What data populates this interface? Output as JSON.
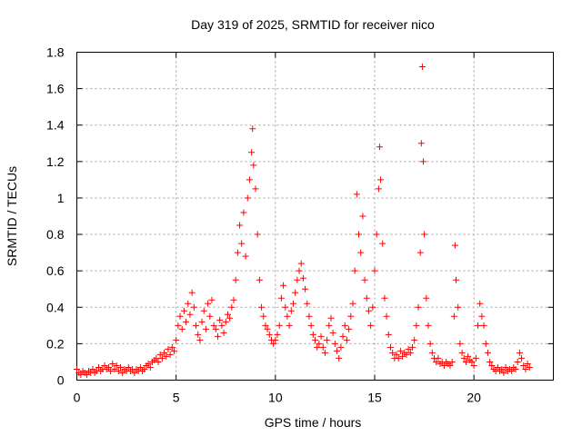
{
  "chart_data": {
    "type": "scatter",
    "title": "Day 319 of 2025, SRMTID for receiver nico",
    "xlabel": "GPS time / hours",
    "ylabel": "SRMTID / TECUs",
    "xlim": [
      0,
      24
    ],
    "ylim": [
      0,
      1.8
    ],
    "grid": true,
    "x_ticks": [
      0,
      5,
      10,
      15,
      20
    ],
    "x_tick_labels": [
      "0",
      "5",
      "10",
      "15",
      "20"
    ],
    "y_ticks": [
      0,
      0.2,
      0.4,
      0.6,
      0.8,
      1,
      1.2,
      1.4,
      1.6,
      1.8
    ],
    "y_tick_labels": [
      "0",
      "0.2",
      "0.4",
      "0.6",
      "0.8",
      "1",
      "1.2",
      "1.4",
      "1.6",
      "1.8"
    ],
    "marker": "+",
    "color": "#ff0000",
    "series": [
      {
        "name": "SRMTID",
        "points": [
          [
            0.0,
            0.06
          ],
          [
            0.1,
            0.04
          ],
          [
            0.2,
            0.03
          ],
          [
            0.3,
            0.05
          ],
          [
            0.4,
            0.04
          ],
          [
            0.5,
            0.03
          ],
          [
            0.6,
            0.05
          ],
          [
            0.7,
            0.04
          ],
          [
            0.8,
            0.06
          ],
          [
            0.9,
            0.04
          ],
          [
            1.0,
            0.05
          ],
          [
            1.1,
            0.07
          ],
          [
            1.2,
            0.05
          ],
          [
            1.3,
            0.06
          ],
          [
            1.4,
            0.08
          ],
          [
            1.5,
            0.06
          ],
          [
            1.6,
            0.07
          ],
          [
            1.7,
            0.05
          ],
          [
            1.8,
            0.09
          ],
          [
            1.9,
            0.06
          ],
          [
            2.0,
            0.08
          ],
          [
            2.1,
            0.05
          ],
          [
            2.2,
            0.07
          ],
          [
            2.3,
            0.04
          ],
          [
            2.4,
            0.06
          ],
          [
            2.5,
            0.05
          ],
          [
            2.6,
            0.07
          ],
          [
            2.7,
            0.05
          ],
          [
            2.8,
            0.06
          ],
          [
            2.9,
            0.04
          ],
          [
            3.0,
            0.06
          ],
          [
            3.1,
            0.05
          ],
          [
            3.2,
            0.07
          ],
          [
            3.3,
            0.05
          ],
          [
            3.4,
            0.06
          ],
          [
            3.5,
            0.08
          ],
          [
            3.6,
            0.09
          ],
          [
            3.7,
            0.07
          ],
          [
            3.8,
            0.1
          ],
          [
            3.9,
            0.11
          ],
          [
            4.0,
            0.12
          ],
          [
            4.1,
            0.1
          ],
          [
            4.2,
            0.14
          ],
          [
            4.3,
            0.12
          ],
          [
            4.4,
            0.15
          ],
          [
            4.5,
            0.13
          ],
          [
            4.6,
            0.17
          ],
          [
            4.7,
            0.14
          ],
          [
            4.8,
            0.18
          ],
          [
            4.9,
            0.16
          ],
          [
            5.0,
            0.22
          ],
          [
            5.1,
            0.3
          ],
          [
            5.2,
            0.35
          ],
          [
            5.3,
            0.28
          ],
          [
            5.4,
            0.38
          ],
          [
            5.5,
            0.32
          ],
          [
            5.6,
            0.42
          ],
          [
            5.7,
            0.36
          ],
          [
            5.8,
            0.48
          ],
          [
            5.9,
            0.4
          ],
          [
            6.0,
            0.3
          ],
          [
            6.1,
            0.25
          ],
          [
            6.2,
            0.22
          ],
          [
            6.3,
            0.32
          ],
          [
            6.4,
            0.38
          ],
          [
            6.5,
            0.28
          ],
          [
            6.6,
            0.42
          ],
          [
            6.7,
            0.35
          ],
          [
            6.8,
            0.44
          ],
          [
            6.9,
            0.3
          ],
          [
            7.0,
            0.28
          ],
          [
            7.1,
            0.24
          ],
          [
            7.2,
            0.33
          ],
          [
            7.3,
            0.3
          ],
          [
            7.4,
            0.26
          ],
          [
            7.5,
            0.32
          ],
          [
            7.6,
            0.36
          ],
          [
            7.7,
            0.34
          ],
          [
            7.8,
            0.4
          ],
          [
            7.9,
            0.44
          ],
          [
            8.0,
            0.55
          ],
          [
            8.1,
            0.7
          ],
          [
            8.2,
            0.85
          ],
          [
            8.3,
            0.75
          ],
          [
            8.4,
            0.92
          ],
          [
            8.5,
            0.68
          ],
          [
            8.6,
            1.0
          ],
          [
            8.7,
            1.1
          ],
          [
            8.8,
            1.25
          ],
          [
            8.85,
            1.38
          ],
          [
            8.9,
            1.18
          ],
          [
            9.0,
            1.05
          ],
          [
            9.1,
            0.8
          ],
          [
            9.2,
            0.55
          ],
          [
            9.3,
            0.4
          ],
          [
            9.4,
            0.35
          ],
          [
            9.5,
            0.3
          ],
          [
            9.6,
            0.28
          ],
          [
            9.7,
            0.25
          ],
          [
            9.8,
            0.22
          ],
          [
            9.9,
            0.2
          ],
          [
            10.0,
            0.22
          ],
          [
            10.1,
            0.25
          ],
          [
            10.2,
            0.3
          ],
          [
            10.3,
            0.45
          ],
          [
            10.4,
            0.52
          ],
          [
            10.5,
            0.4
          ],
          [
            10.6,
            0.35
          ],
          [
            10.7,
            0.3
          ],
          [
            10.8,
            0.38
          ],
          [
            10.9,
            0.42
          ],
          [
            11.0,
            0.48
          ],
          [
            11.1,
            0.55
          ],
          [
            11.2,
            0.6
          ],
          [
            11.3,
            0.64
          ],
          [
            11.4,
            0.56
          ],
          [
            11.5,
            0.5
          ],
          [
            11.6,
            0.42
          ],
          [
            11.7,
            0.35
          ],
          [
            11.8,
            0.3
          ],
          [
            11.9,
            0.25
          ],
          [
            12.0,
            0.22
          ],
          [
            12.1,
            0.18
          ],
          [
            12.2,
            0.2
          ],
          [
            12.3,
            0.24
          ],
          [
            12.4,
            0.18
          ],
          [
            12.5,
            0.15
          ],
          [
            12.6,
            0.22
          ],
          [
            12.7,
            0.3
          ],
          [
            12.8,
            0.34
          ],
          [
            12.9,
            0.26
          ],
          [
            13.0,
            0.2
          ],
          [
            13.1,
            0.16
          ],
          [
            13.2,
            0.12
          ],
          [
            13.3,
            0.18
          ],
          [
            13.4,
            0.24
          ],
          [
            13.5,
            0.3
          ],
          [
            13.6,
            0.22
          ],
          [
            13.7,
            0.28
          ],
          [
            13.8,
            0.35
          ],
          [
            13.9,
            0.42
          ],
          [
            14.0,
            0.6
          ],
          [
            14.1,
            1.02
          ],
          [
            14.2,
            0.8
          ],
          [
            14.3,
            0.7
          ],
          [
            14.4,
            0.9
          ],
          [
            14.5,
            0.55
          ],
          [
            14.6,
            0.45
          ],
          [
            14.7,
            0.38
          ],
          [
            14.8,
            0.3
          ],
          [
            14.9,
            0.4
          ],
          [
            15.0,
            0.6
          ],
          [
            15.1,
            0.8
          ],
          [
            15.2,
            1.05
          ],
          [
            15.25,
            1.28
          ],
          [
            15.3,
            1.1
          ],
          [
            15.4,
            0.75
          ],
          [
            15.5,
            0.45
          ],
          [
            15.6,
            0.35
          ],
          [
            15.7,
            0.25
          ],
          [
            15.8,
            0.18
          ],
          [
            15.9,
            0.15
          ],
          [
            16.0,
            0.12
          ],
          [
            16.1,
            0.14
          ],
          [
            16.2,
            0.12
          ],
          [
            16.3,
            0.16
          ],
          [
            16.4,
            0.13
          ],
          [
            16.5,
            0.15
          ],
          [
            16.6,
            0.14
          ],
          [
            16.7,
            0.17
          ],
          [
            16.8,
            0.15
          ],
          [
            16.9,
            0.18
          ],
          [
            17.0,
            0.22
          ],
          [
            17.1,
            0.3
          ],
          [
            17.2,
            0.4
          ],
          [
            17.3,
            0.7
          ],
          [
            17.35,
            1.3
          ],
          [
            17.4,
            1.72
          ],
          [
            17.45,
            1.2
          ],
          [
            17.5,
            0.8
          ],
          [
            17.6,
            0.45
          ],
          [
            17.7,
            0.3
          ],
          [
            17.8,
            0.2
          ],
          [
            17.9,
            0.15
          ],
          [
            18.0,
            0.12
          ],
          [
            18.1,
            0.1
          ],
          [
            18.2,
            0.12
          ],
          [
            18.3,
            0.09
          ],
          [
            18.4,
            0.1
          ],
          [
            18.5,
            0.08
          ],
          [
            18.6,
            0.1
          ],
          [
            18.7,
            0.09
          ],
          [
            18.8,
            0.08
          ],
          [
            18.9,
            0.1
          ],
          [
            19.0,
            0.35
          ],
          [
            19.05,
            0.74
          ],
          [
            19.1,
            0.55
          ],
          [
            19.2,
            0.4
          ],
          [
            19.3,
            0.2
          ],
          [
            19.4,
            0.15
          ],
          [
            19.5,
            0.12
          ],
          [
            19.6,
            0.1
          ],
          [
            19.7,
            0.13
          ],
          [
            19.8,
            0.11
          ],
          [
            19.9,
            0.1
          ],
          [
            20.0,
            0.08
          ],
          [
            20.1,
            0.12
          ],
          [
            20.2,
            0.3
          ],
          [
            20.3,
            0.42
          ],
          [
            20.4,
            0.35
          ],
          [
            20.5,
            0.3
          ],
          [
            20.6,
            0.2
          ],
          [
            20.7,
            0.15
          ],
          [
            20.8,
            0.1
          ],
          [
            20.9,
            0.08
          ],
          [
            21.0,
            0.06
          ],
          [
            21.1,
            0.05
          ],
          [
            21.2,
            0.07
          ],
          [
            21.3,
            0.05
          ],
          [
            21.4,
            0.06
          ],
          [
            21.5,
            0.04
          ],
          [
            21.6,
            0.07
          ],
          [
            21.7,
            0.05
          ],
          [
            21.8,
            0.06
          ],
          [
            21.9,
            0.05
          ],
          [
            22.0,
            0.07
          ],
          [
            22.1,
            0.06
          ],
          [
            22.2,
            0.1
          ],
          [
            22.3,
            0.15
          ],
          [
            22.4,
            0.12
          ],
          [
            22.5,
            0.08
          ],
          [
            22.6,
            0.06
          ],
          [
            22.7,
            0.09
          ],
          [
            22.8,
            0.07
          ]
        ]
      }
    ]
  }
}
